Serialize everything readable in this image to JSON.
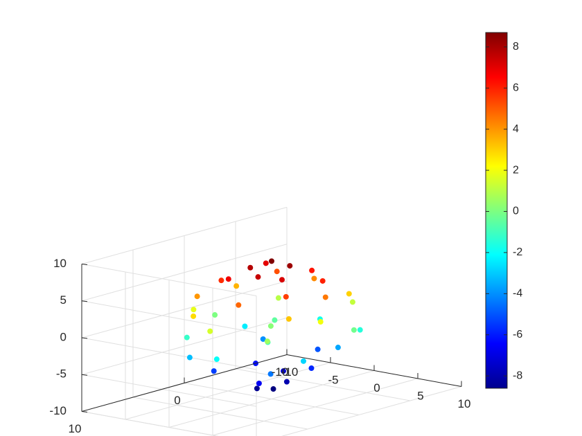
{
  "chart_data": {
    "type": "scatter",
    "projection": "3d",
    "title": "",
    "xlabel": "",
    "ylabel": "",
    "zlabel": "",
    "xlim": [
      -10,
      10
    ],
    "ylim": [
      -10,
      10
    ],
    "zlim": [
      -10,
      10
    ],
    "grid": true,
    "box": "back planes",
    "colormap": "jet",
    "color_by": "z",
    "marker_size_hint": "small dots",
    "x_ticks": [
      {
        "value": -10,
        "label": "-10"
      },
      {
        "value": -5,
        "label": "-5"
      },
      {
        "value": 0,
        "label": "0"
      },
      {
        "value": 5,
        "label": "5"
      },
      {
        "value": 10,
        "label": "10"
      }
    ],
    "y_ticks": [
      {
        "value": 10,
        "label": "10"
      },
      {
        "value": 0,
        "label": "0"
      },
      {
        "value": -10,
        "label": "-10"
      }
    ],
    "z_ticks": [
      {
        "value": 10,
        "label": "10"
      },
      {
        "value": 5,
        "label": "5"
      },
      {
        "value": 0,
        "label": "0"
      },
      {
        "value": -5,
        "label": "-5"
      },
      {
        "value": -10,
        "label": "-10"
      }
    ],
    "colorbar": {
      "range": [
        -8.6,
        8.7
      ],
      "ticks": [
        {
          "value": 8,
          "label": "8"
        },
        {
          "value": 6,
          "label": "6"
        },
        {
          "value": 4,
          "label": "4"
        },
        {
          "value": 2,
          "label": "2"
        },
        {
          "value": 0,
          "label": "0"
        },
        {
          "value": -2,
          "label": "-2"
        },
        {
          "value": -4,
          "label": "-4"
        },
        {
          "value": -6,
          "label": "-6"
        },
        {
          "value": -8,
          "label": "-8"
        }
      ]
    },
    "points": [
      [
        0.0,
        0.0,
        8.7
      ],
      [
        1.5,
        -0.5,
        8.2
      ],
      [
        -1.5,
        0.8,
        7.8
      ],
      [
        0.8,
        2.0,
        7.5
      ],
      [
        -3.0,
        -2.0,
        7.0
      ],
      [
        2.6,
        1.2,
        7.2
      ],
      [
        -2.0,
        2.5,
        6.8
      ],
      [
        3.5,
        -2.0,
        6.0
      ],
      [
        -4.0,
        1.5,
        5.8
      ],
      [
        4.0,
        2.0,
        5.5
      ],
      [
        0.5,
        -3.5,
        6.2
      ],
      [
        -3.5,
        -3.5,
        5.2
      ],
      [
        5.0,
        -1.0,
        4.5
      ],
      [
        -5.0,
        3.0,
        4.0
      ],
      [
        1.5,
        4.5,
        4.8
      ],
      [
        -1.0,
        -5.0,
        4.2
      ],
      [
        5.5,
        3.0,
        3.2
      ],
      [
        -5.8,
        -1.5,
        3.5
      ],
      [
        3.0,
        -5.0,
        3.0
      ],
      [
        -2.5,
        5.5,
        2.8
      ],
      [
        6.2,
        0.5,
        2.0
      ],
      [
        -6.0,
        2.5,
        1.8
      ],
      [
        0.0,
        6.0,
        1.5
      ],
      [
        2.0,
        -6.2,
        1.2
      ],
      [
        -4.5,
        -4.5,
        1.0
      ],
      [
        4.8,
        4.5,
        0.6
      ],
      [
        -6.5,
        0.0,
        0.0
      ],
      [
        6.5,
        -2.5,
        -0.2
      ],
      [
        0.5,
        0.5,
        0.2
      ],
      [
        -2.0,
        -2.0,
        -0.5
      ],
      [
        2.5,
        2.5,
        -0.8
      ],
      [
        -5.0,
        4.0,
        -1.2
      ],
      [
        4.5,
        -4.8,
        -1.5
      ],
      [
        -1.5,
        -6.0,
        -1.8
      ],
      [
        1.0,
        6.2,
        -2.0
      ],
      [
        -6.0,
        -2.5,
        -2.4
      ],
      [
        6.0,
        2.0,
        -2.8
      ],
      [
        -3.5,
        5.0,
        -3.2
      ],
      [
        3.5,
        -3.5,
        -3.6
      ],
      [
        -4.5,
        -3.0,
        -4.0
      ],
      [
        4.0,
        3.5,
        -4.4
      ],
      [
        0.0,
        -4.5,
        -5.0
      ],
      [
        -2.5,
        3.5,
        -5.4
      ],
      [
        2.8,
        -1.5,
        -5.8
      ],
      [
        -3.0,
        -1.0,
        -6.2
      ],
      [
        1.5,
        2.5,
        -6.6
      ],
      [
        -1.0,
        -2.0,
        -7.2
      ],
      [
        0.8,
        -0.8,
        -7.8
      ],
      [
        -0.5,
        1.0,
        -8.3
      ],
      [
        0.2,
        0.0,
        -8.6
      ]
    ]
  }
}
